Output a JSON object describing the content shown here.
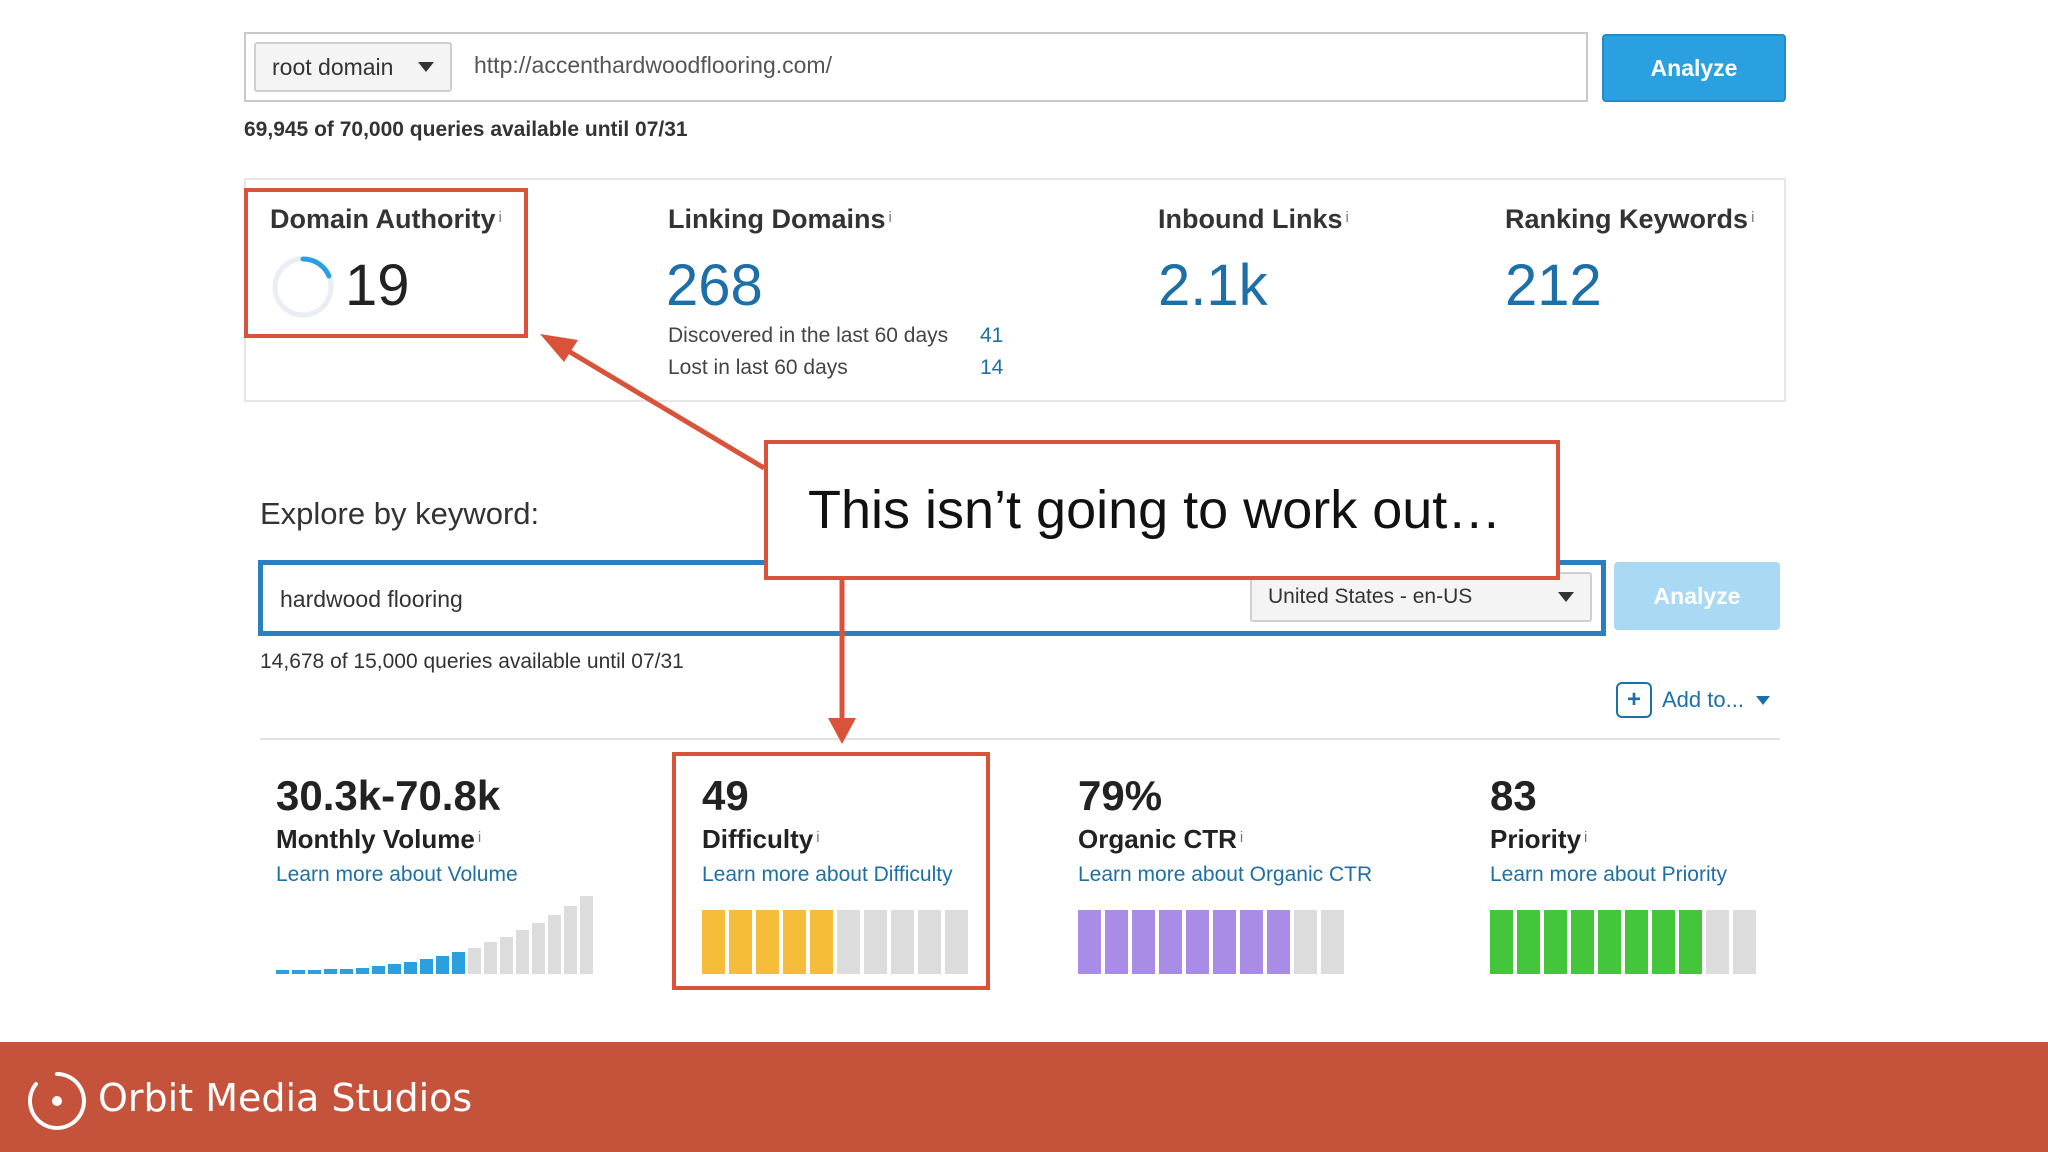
{
  "top_search": {
    "scope": "root domain",
    "url": "http://accenthardwoodflooring.com/",
    "analyze_label": "Analyze",
    "quota": "69,945 of 70,000 queries available until 07/31"
  },
  "metrics": {
    "domain_authority": {
      "title": "Domain Authority",
      "info": "i",
      "value": "19"
    },
    "linking_domains": {
      "title": "Linking Domains",
      "info": "i",
      "value": "268",
      "discovered_label": "Discovered in the last 60 days",
      "discovered_value": "41",
      "lost_label": "Lost in last 60 days",
      "lost_value": "14"
    },
    "inbound_links": {
      "title": "Inbound Links",
      "info": "i",
      "value": "2.1k"
    },
    "ranking_keywords": {
      "title": "Ranking Keywords",
      "info": "i",
      "value": "212"
    }
  },
  "callout": {
    "text": "This isn’t going to work out…"
  },
  "keyword_explorer": {
    "label": "Explore by keyword:",
    "keyword": "hardwood flooring",
    "locale": "United States - en-US",
    "analyze_label": "Analyze",
    "quota": "14,678 of 15,000 queries available until 07/31",
    "add_to_label": "Add to..."
  },
  "keyword_metrics": {
    "volume": {
      "value": "30.3k-70.8k",
      "label": "Monthly Volume",
      "info": "i",
      "link": "Learn more about Volume",
      "filled_bars": 12,
      "total_bars": 20
    },
    "difficulty": {
      "value": "49",
      "label": "Difficulty",
      "info": "i",
      "link": "Learn more about Difficulty",
      "filled_bars": 5,
      "total_bars": 10,
      "color": "#f5bd3a"
    },
    "organic_ctr": {
      "value": "79%",
      "label": "Organic CTR",
      "info": "i",
      "link": "Learn more about Organic CTR",
      "filled_bars": 8,
      "total_bars": 10,
      "color": "#a98ce6"
    },
    "priority": {
      "value": "83",
      "label": "Priority",
      "info": "i",
      "link": "Learn more about Priority",
      "filled_bars": 8,
      "total_bars": 10,
      "color": "#44c63c"
    }
  },
  "footer": {
    "brand": "Orbit Media Studios",
    "color": "#c5523b"
  },
  "icons": {
    "dropdown": "chevron-down-icon",
    "add": "plus-icon",
    "logo": "orbit-logo-icon",
    "da_ring": "progress-ring-icon"
  }
}
